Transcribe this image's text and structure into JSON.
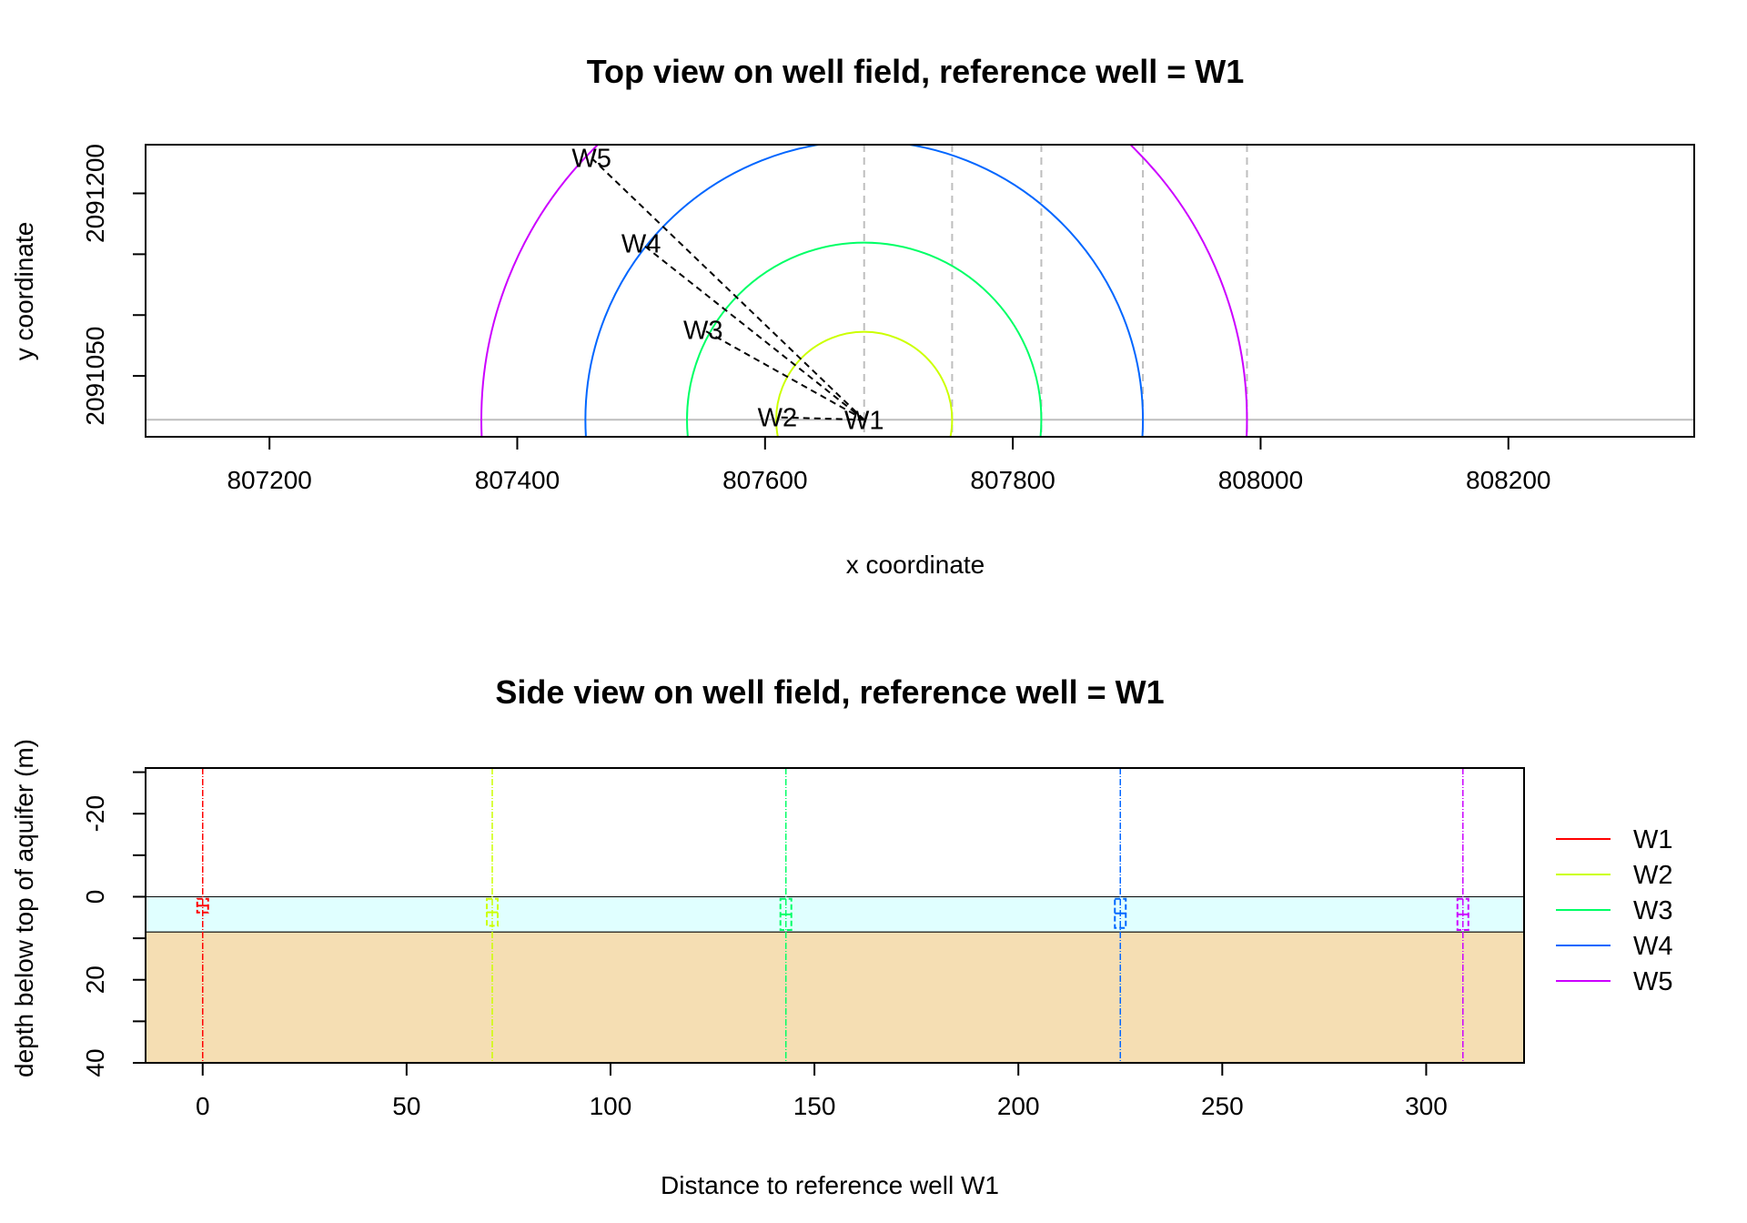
{
  "chart_data": [
    {
      "type": "scatter",
      "title": "Top view on well field, reference well = W1",
      "xlabel": "x coordinate",
      "ylabel": "y coordinate",
      "xlim": [
        807100,
        808350
      ],
      "ylim": [
        2091000,
        2091240
      ],
      "x_ticks": [
        "807200",
        "807400",
        "807600",
        "807800",
        "808000",
        "808200"
      ],
      "y_ticks": [
        "2091050",
        "2091200"
      ],
      "y_tick_values": [
        2091050,
        2091100,
        2091150,
        2091200
      ],
      "reference_well": {
        "name": "W1",
        "x": 807680,
        "y": 2091014
      },
      "wells": [
        {
          "name": "W1",
          "x": 807680,
          "y": 2091014,
          "distance": 0
        },
        {
          "name": "W2",
          "x": 807610,
          "y": 2091016,
          "distance": 71
        },
        {
          "name": "W3",
          "x": 807550,
          "y": 2091088,
          "distance": 143
        },
        {
          "name": "W4",
          "x": 807500,
          "y": 2091159,
          "distance": 225
        },
        {
          "name": "W5",
          "x": 807460,
          "y": 2091229,
          "distance": 309
        }
      ],
      "grid_lines_x": [
        807680,
        807751,
        807823,
        807905,
        807989
      ],
      "colors": {
        "W1": "#ff0000",
        "W2": "#ccff00",
        "W3": "#00ff66",
        "W4": "#0066ff",
        "W5": "#cc00ff",
        "connector": "#000000",
        "grid": "#bebebe"
      }
    },
    {
      "type": "line",
      "title": "Side view on well field, reference well = W1",
      "xlabel": "Distance to reference well W1",
      "ylabel": "depth below top of aquifer (m)",
      "xlim": [
        -14,
        324
      ],
      "ylim": [
        40,
        -31
      ],
      "x_ticks": [
        "0",
        "50",
        "100",
        "150",
        "200",
        "250",
        "300"
      ],
      "y_ticks": [
        "-20",
        "0",
        "20",
        "40"
      ],
      "y_tick_values": [
        -30,
        -20,
        -10,
        0,
        10,
        20,
        30,
        40
      ],
      "aquifer": {
        "top": 0,
        "bottom": 8.5,
        "color": "#e0ffff"
      },
      "below_aquifer": {
        "from": 8.5,
        "to": 40,
        "color": "#f5deb3"
      },
      "series": [
        {
          "name": "W1",
          "distance": 0,
          "screen_top": 0.5,
          "screen_bottom": 3.8,
          "color": "#ff0000"
        },
        {
          "name": "W2",
          "distance": 71,
          "screen_top": 0.5,
          "screen_bottom": 7.0,
          "color": "#ccff00"
        },
        {
          "name": "W3",
          "distance": 143,
          "screen_top": 0.5,
          "screen_bottom": 8.0,
          "color": "#00ff66"
        },
        {
          "name": "W4",
          "distance": 225,
          "screen_top": 0.5,
          "screen_bottom": 7.5,
          "color": "#0066ff"
        },
        {
          "name": "W5",
          "distance": 309,
          "screen_top": 0.5,
          "screen_bottom": 8.0,
          "color": "#cc00ff"
        }
      ],
      "legend": {
        "position": "right",
        "entries": [
          "W1",
          "W2",
          "W3",
          "W4",
          "W5"
        ]
      }
    }
  ]
}
